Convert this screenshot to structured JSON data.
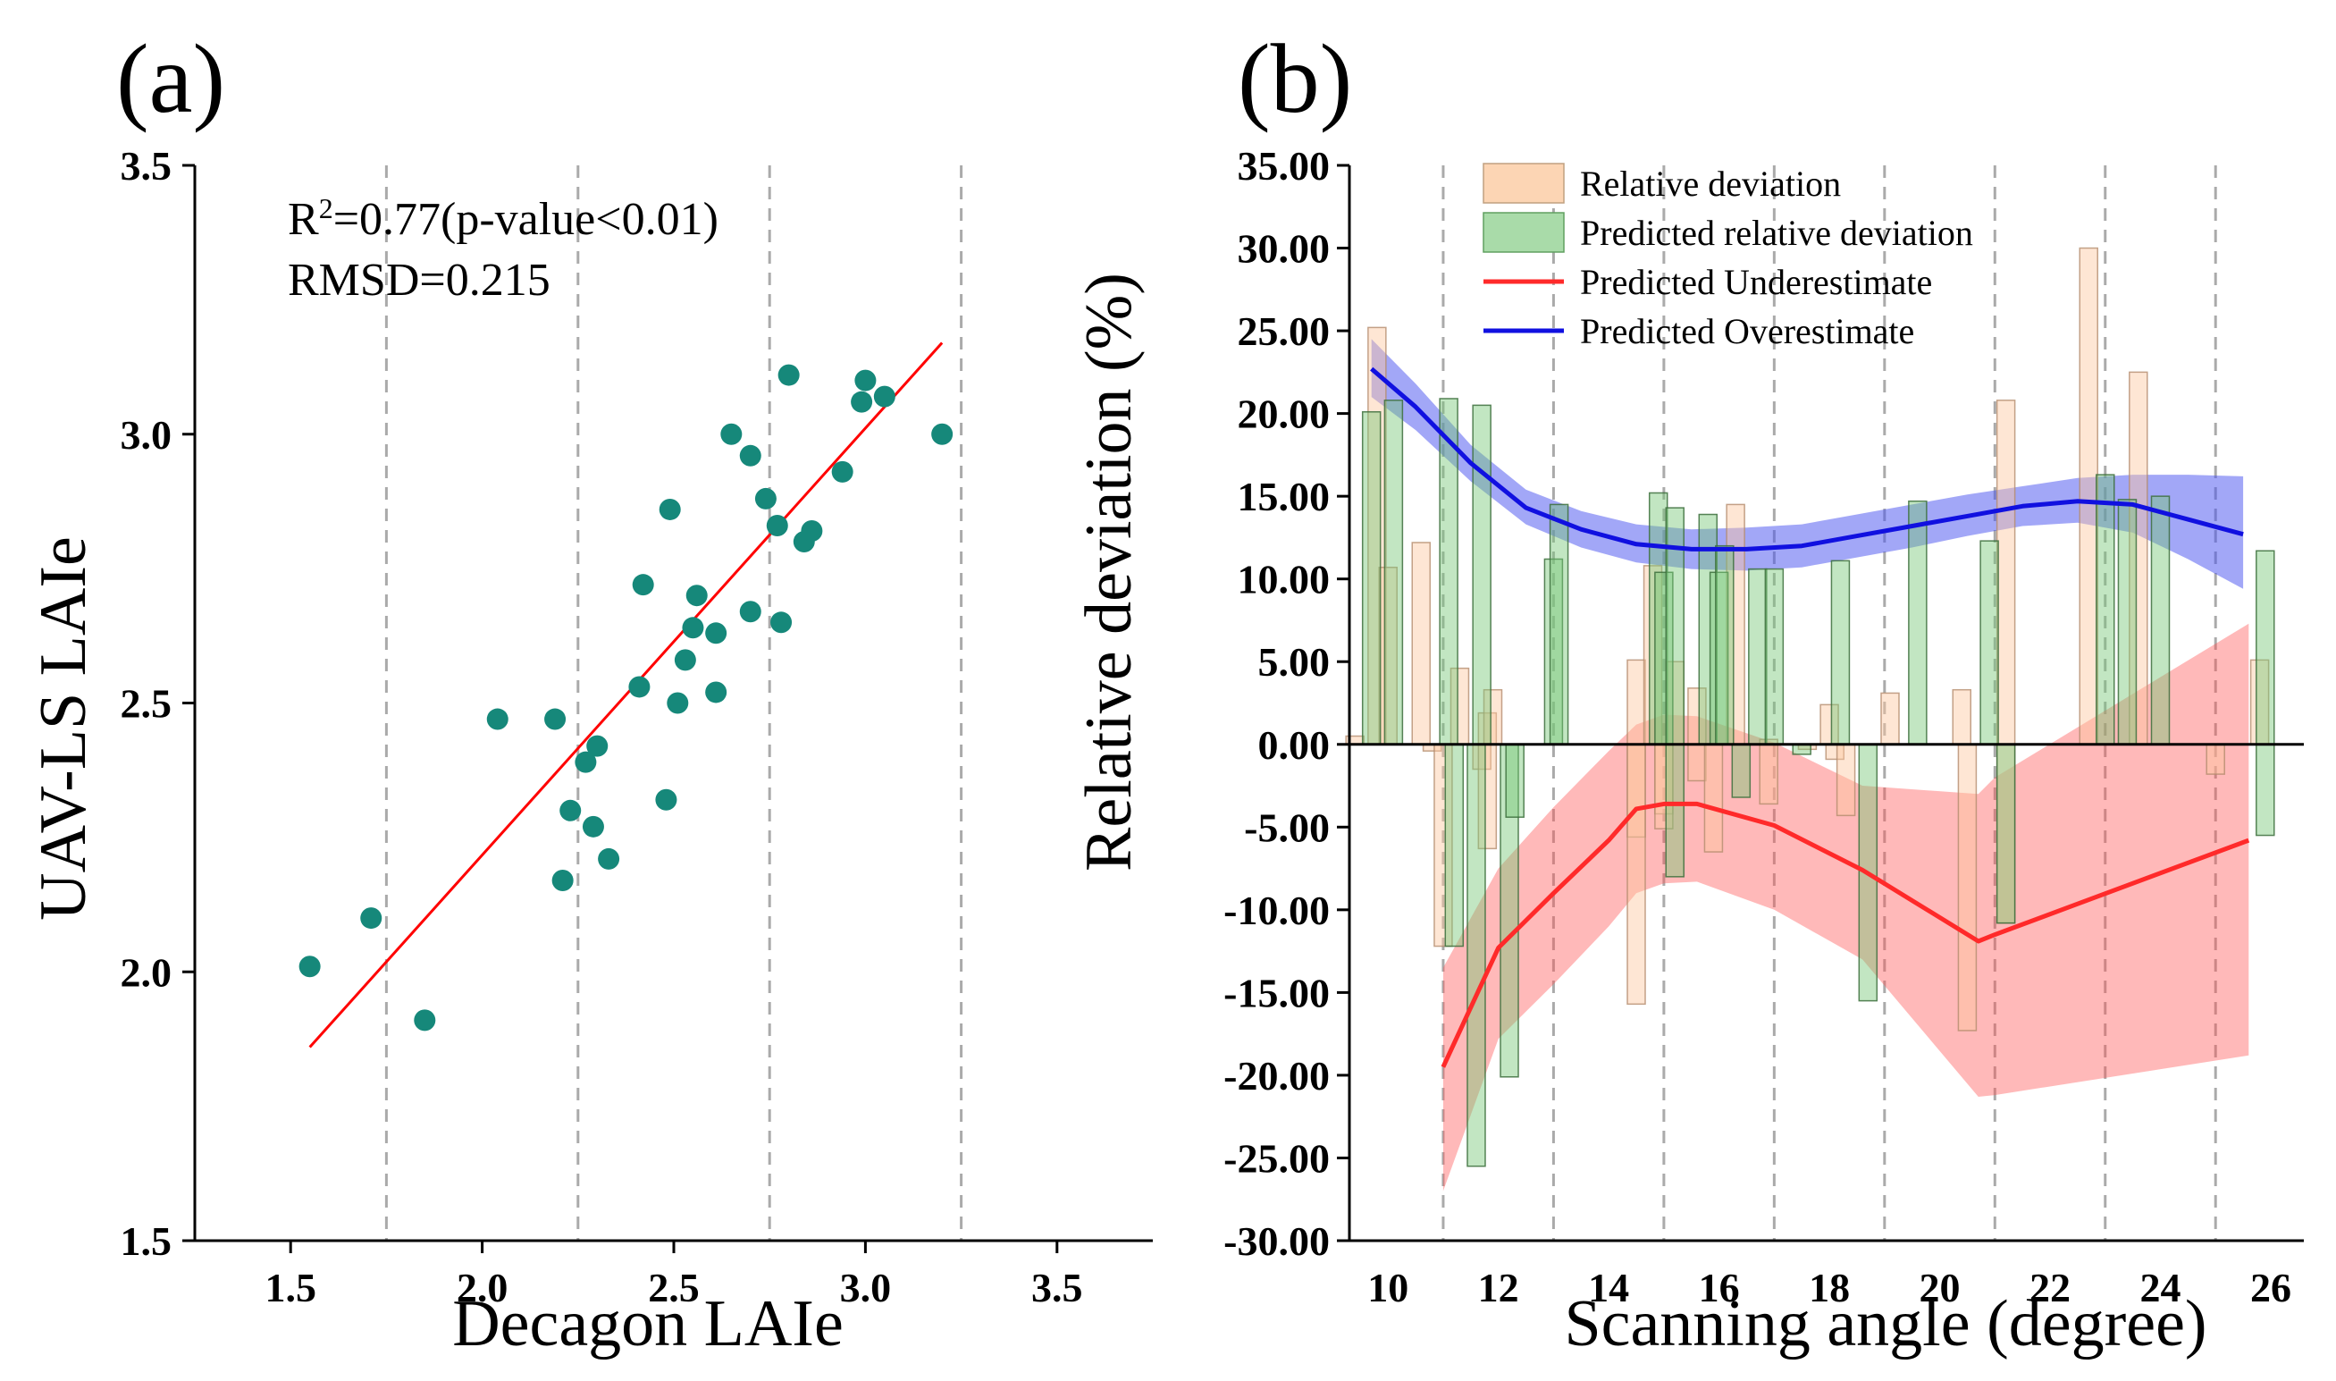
{
  "chart_data": [
    {
      "panel": "(a)",
      "type": "scatter",
      "xlabel": "Decagon LAIe",
      "ylabel": "UAV-LS LAIe",
      "xlim": [
        1.25,
        3.75
      ],
      "ylim": [
        1.5,
        3.5
      ],
      "xticks": [
        1.5,
        2.0,
        2.5,
        3.0,
        3.5
      ],
      "xtick_labels": [
        "1.5",
        "2.0",
        "2.5",
        "3.0",
        "3.5"
      ],
      "yticks": [
        1.5,
        2.0,
        2.5,
        3.0,
        3.5
      ],
      "ytick_labels": [
        "1.5",
        "2.0",
        "2.5",
        "3.0",
        "3.5"
      ],
      "vgrid": [
        1.75,
        2.25,
        2.75,
        3.25
      ],
      "annotation_r2_prefix": "R",
      "annotation_r2_sup": "2",
      "annotation_r2_rest": "=0.77(p-value<0.01)",
      "annotation_rmsd": "RMSD=0.215",
      "point_color": "#16887a",
      "line_color": "#ff0000",
      "fit_line": {
        "x": [
          1.55,
          3.2
        ],
        "y": [
          1.86,
          3.17
        ]
      },
      "points": [
        [
          1.55,
          2.01
        ],
        [
          1.71,
          2.1
        ],
        [
          1.85,
          1.91
        ],
        [
          2.04,
          2.47
        ],
        [
          2.19,
          2.47
        ],
        [
          2.21,
          2.17
        ],
        [
          2.23,
          2.3
        ],
        [
          2.27,
          2.39
        ],
        [
          2.29,
          2.27
        ],
        [
          2.3,
          2.42
        ],
        [
          2.33,
          2.21
        ],
        [
          2.41,
          2.53
        ],
        [
          2.42,
          2.72
        ],
        [
          2.48,
          2.32
        ],
        [
          2.49,
          2.86
        ],
        [
          2.51,
          2.5
        ],
        [
          2.53,
          2.58
        ],
        [
          2.55,
          2.64
        ],
        [
          2.56,
          2.7
        ],
        [
          2.61,
          2.52
        ],
        [
          2.61,
          2.63
        ],
        [
          2.65,
          3.0
        ],
        [
          2.7,
          2.96
        ],
        [
          2.7,
          2.67
        ],
        [
          2.74,
          2.88
        ],
        [
          2.77,
          2.83
        ],
        [
          2.78,
          2.65
        ],
        [
          2.8,
          3.11
        ],
        [
          2.84,
          2.8
        ],
        [
          2.86,
          2.82
        ],
        [
          2.94,
          2.93
        ],
        [
          2.99,
          3.06
        ],
        [
          3.0,
          3.1
        ],
        [
          3.05,
          3.07
        ],
        [
          3.2,
          3.0
        ]
      ]
    },
    {
      "panel": "(b)",
      "type": "bar",
      "xlabel": "Scanning angle (degree)",
      "ylabel": "Relative deviation (%)",
      "xlim": [
        9.3,
        26.6
      ],
      "ylim": [
        -30,
        35
      ],
      "xticks": [
        10,
        12,
        14,
        16,
        18,
        20,
        22,
        24,
        26
      ],
      "xtick_labels": [
        "10",
        "12",
        "14",
        "16",
        "18",
        "20",
        "22",
        "24",
        "26"
      ],
      "yticks": [
        -30,
        -25,
        -20,
        -15,
        -10,
        -5,
        0,
        5,
        10,
        15,
        20,
        25,
        30,
        35
      ],
      "ytick_labels": [
        "-30.00",
        "-25.00",
        "-20.00",
        "-15.00",
        "-10.00",
        "-5.00",
        "0.00",
        "5.00",
        "10.00",
        "15.00",
        "20.00",
        "25.00",
        "30.00",
        "35.00"
      ],
      "vgrid": [
        11,
        13,
        15,
        17,
        19,
        21,
        23,
        25
      ],
      "legend": [
        {
          "label": "Relative deviation",
          "kind": "box",
          "color": "#fcd5b4"
        },
        {
          "label": "Predicted relative deviation",
          "kind": "box",
          "color": "#a9dba9"
        },
        {
          "label": "Predicted Underestimate",
          "kind": "line",
          "color": "#ff2a2a"
        },
        {
          "label": "Predicted Overestimate",
          "kind": "line",
          "color": "#1010e0"
        }
      ],
      "relative_deviation_bars": [
        [
          9.4,
          0.5
        ],
        [
          9.8,
          25.2
        ],
        [
          10.0,
          10.7
        ],
        [
          10.6,
          12.2
        ],
        [
          10.8,
          -0.4
        ],
        [
          11.3,
          4.6
        ],
        [
          11.0,
          -12.2
        ],
        [
          11.7,
          -1.5
        ],
        [
          11.8,
          1.9
        ],
        [
          11.9,
          3.3
        ],
        [
          11.8,
          -6.3
        ],
        [
          14.5,
          5.1
        ],
        [
          14.5,
          -5.6
        ],
        [
          14.5,
          -15.7
        ],
        [
          14.8,
          10.8
        ],
        [
          15.0,
          -4.2
        ],
        [
          15.0,
          -5.1
        ],
        [
          15.2,
          5.0
        ],
        [
          15.6,
          -2.2
        ],
        [
          15.6,
          3.4
        ],
        [
          15.9,
          -6.5
        ],
        [
          16.3,
          14.5
        ],
        [
          16.9,
          0.3
        ],
        [
          16.9,
          -3.6
        ],
        [
          17.6,
          -0.3
        ],
        [
          18.0,
          2.4
        ],
        [
          18.1,
          -0.9
        ],
        [
          18.3,
          -4.3
        ],
        [
          19.1,
          3.1
        ],
        [
          20.4,
          3.3
        ],
        [
          20.5,
          -17.3
        ],
        [
          21.2,
          20.8
        ],
        [
          21.2,
          -10.8
        ],
        [
          22.7,
          30.0
        ],
        [
          23.6,
          22.5
        ],
        [
          25.0,
          -1.8
        ],
        [
          25.8,
          5.1
        ]
      ],
      "predicted_relative_deviation_bars": [
        [
          9.7,
          20.1
        ],
        [
          10.1,
          20.8
        ],
        [
          11.1,
          20.9
        ],
        [
          11.7,
          20.5
        ],
        [
          11.2,
          -12.2
        ],
        [
          11.6,
          -25.5
        ],
        [
          12.2,
          -20.1
        ],
        [
          12.3,
          -4.4
        ],
        [
          13.0,
          11.2
        ],
        [
          13.1,
          14.5
        ],
        [
          14.9,
          15.2
        ],
        [
          15.0,
          10.4
        ],
        [
          15.2,
          14.3
        ],
        [
          15.2,
          -8.0
        ],
        [
          15.8,
          13.9
        ],
        [
          16.0,
          10.4
        ],
        [
          16.1,
          12.0
        ],
        [
          16.4,
          -3.2
        ],
        [
          16.7,
          10.6
        ],
        [
          17.0,
          10.6
        ],
        [
          17.5,
          -0.6
        ],
        [
          18.2,
          11.1
        ],
        [
          18.7,
          -15.5
        ],
        [
          19.6,
          14.7
        ],
        [
          20.9,
          12.3
        ],
        [
          21.2,
          -10.8
        ],
        [
          23.0,
          16.3
        ],
        [
          23.4,
          14.8
        ],
        [
          24.0,
          15.0
        ],
        [
          25.9,
          11.7
        ],
        [
          25.9,
          -5.5
        ]
      ],
      "series": [
        {
          "name": "Predicted Overestimate",
          "color": "#1010e0",
          "x": [
            9.7,
            10.5,
            11.5,
            12.5,
            13.5,
            14.5,
            15.5,
            16.5,
            17.5,
            18.5,
            19.5,
            20.5,
            21.5,
            22.5,
            23.5,
            24.5,
            25.5
          ],
          "y": [
            22.7,
            20.4,
            17.0,
            14.3,
            13.0,
            12.1,
            11.8,
            11.8,
            12.0,
            12.6,
            13.2,
            13.8,
            14.4,
            14.7,
            14.5,
            13.6,
            12.7
          ],
          "band_lower": [
            21.0,
            19.0,
            15.9,
            13.3,
            11.9,
            11.0,
            10.6,
            10.5,
            10.7,
            11.3,
            11.9,
            12.6,
            13.2,
            13.4,
            12.8,
            11.2,
            9.4
          ],
          "band_upper": [
            24.5,
            21.8,
            18.1,
            15.4,
            14.1,
            13.3,
            13.0,
            13.1,
            13.3,
            13.9,
            14.5,
            15.1,
            15.6,
            16.1,
            16.3,
            16.3,
            16.2
          ]
        },
        {
          "name": "Predicted Underestimate",
          "color": "#ff2a2a",
          "x": [
            11.0,
            12.0,
            13.0,
            14.0,
            14.5,
            15.0,
            15.6,
            17.0,
            18.6,
            20.7,
            21.0,
            25.6
          ],
          "y": [
            -19.5,
            -12.3,
            -9.0,
            -5.8,
            -3.9,
            -3.6,
            -3.6,
            -4.9,
            -7.6,
            -11.9,
            -11.5,
            -5.8
          ],
          "band_lower": [
            -27.0,
            -17.8,
            -14.5,
            -11.0,
            -9.0,
            -8.4,
            -8.3,
            -10.0,
            -13.0,
            -21.3,
            -21.2,
            -18.8
          ],
          "band_upper": [
            -13.5,
            -7.5,
            -3.8,
            -0.4,
            1.2,
            1.8,
            1.7,
            0.1,
            -2.5,
            -3.0,
            -2.0,
            7.3
          ]
        }
      ]
    }
  ]
}
